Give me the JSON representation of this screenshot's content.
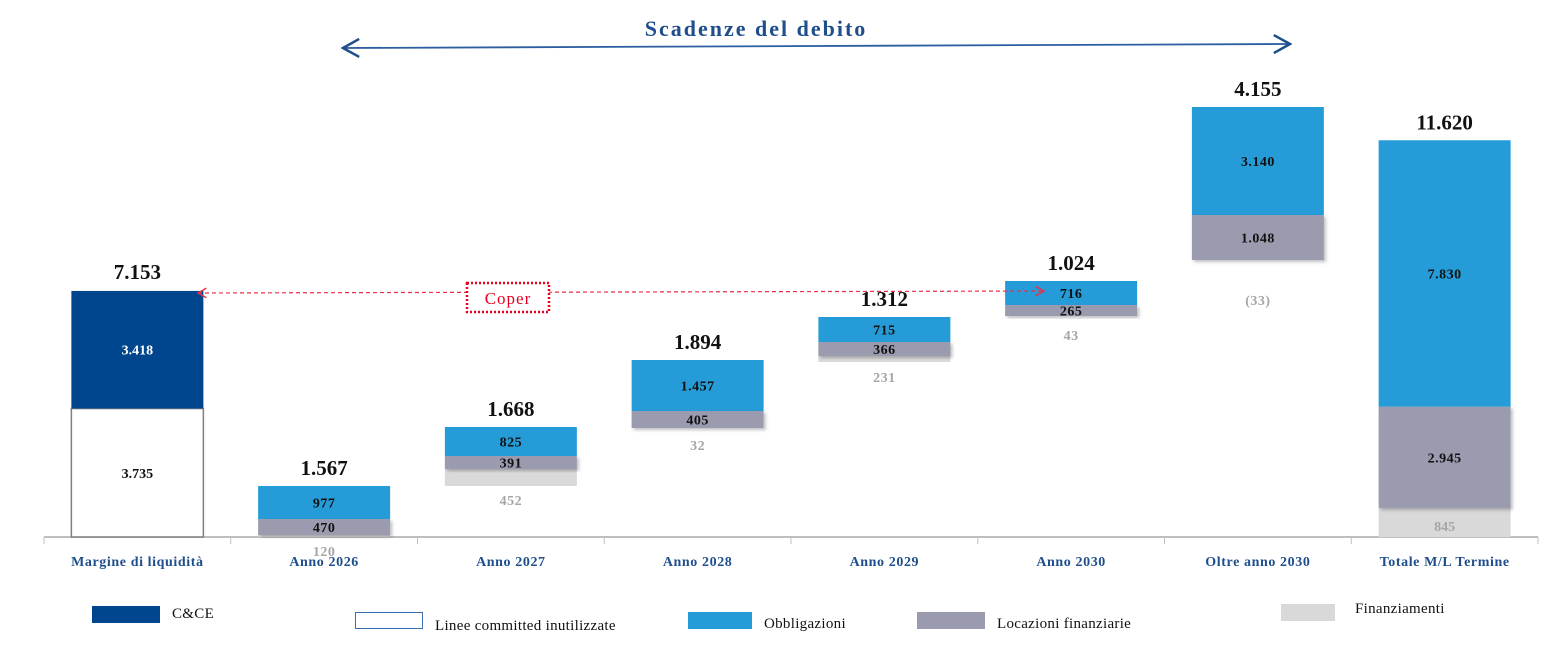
{
  "chart_data": {
    "type": "bar",
    "title": "Scadenze del debito",
    "annotation": "Coper",
    "categories": [
      "Margine di liquidità",
      "Anno 2026",
      "Anno 2027",
      "Anno 2028",
      "Anno 2029",
      "Anno 2030",
      "Oltre anno 2030",
      "Totale M/L Termine"
    ],
    "totals": [
      "7.153",
      "1.567",
      "1.668",
      "1.894",
      "1.312",
      "1.024",
      "4.155",
      "11.620"
    ],
    "series": [
      {
        "name": "C&CE",
        "color": "#00468E",
        "values": [
          3418,
          null,
          null,
          null,
          null,
          null,
          null,
          null
        ],
        "labels": [
          "3.418",
          "",
          "",
          "",
          "",
          "",
          "",
          ""
        ]
      },
      {
        "name": "Linee committed inutilizzate",
        "color": "#FFFFFF",
        "values": [
          3735,
          null,
          null,
          null,
          null,
          null,
          null,
          null
        ],
        "labels": [
          "3.735",
          "",
          "",
          "",
          "",
          "",
          "",
          ""
        ]
      },
      {
        "name": "Obbligazioni",
        "color": "#259CD8",
        "values": [
          null,
          977,
          825,
          1457,
          715,
          716,
          3140,
          7830
        ],
        "labels": [
          "",
          "977",
          "825",
          "1.457",
          "715",
          "716",
          "3.140",
          "7.830"
        ]
      },
      {
        "name": "Locazioni finanziarie",
        "color": "#9B9BB0",
        "values": [
          null,
          470,
          391,
          405,
          366,
          265,
          1048,
          2945
        ],
        "labels": [
          "",
          "470",
          "391",
          "405",
          "366",
          "265",
          "1.048",
          "2.945"
        ]
      },
      {
        "name": "Finanziamenti",
        "color": "#D9D9D9",
        "values": [
          null,
          120,
          452,
          32,
          231,
          43,
          -33,
          845
        ],
        "labels": [
          "",
          "120",
          "452",
          "32",
          "231",
          "43",
          "(33)",
          "845"
        ]
      }
    ],
    "legend_position": "bottom",
    "grid": false
  },
  "legend": [
    {
      "label": "C&CE",
      "color": "#00468E"
    },
    {
      "label": "Linee committed inutilizzate",
      "color": "#FFFFFF"
    },
    {
      "label": "Obbligazioni",
      "color": "#259CD8"
    },
    {
      "label": "Locazioni finanziarie",
      "color": "#9B9BB0"
    },
    {
      "label": "Finanziamenti",
      "color": "#D9D9D9"
    }
  ]
}
